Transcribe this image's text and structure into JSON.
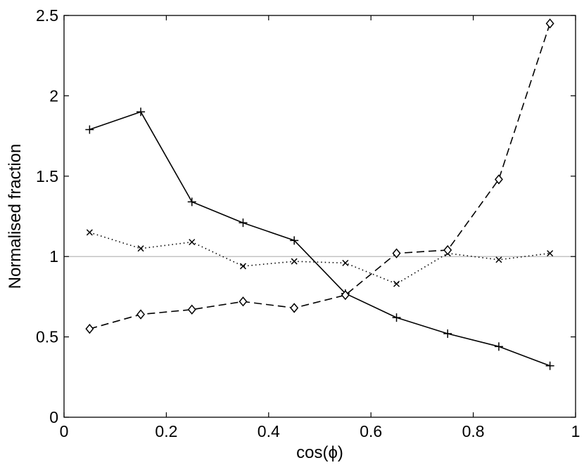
{
  "chart_data": {
    "type": "line",
    "xlabel": "cos(ϕ)",
    "ylabel": "Normalised fraction",
    "xlim": [
      0,
      1
    ],
    "ylim": [
      0,
      2.5
    ],
    "xticks": [
      "0",
      "0.2",
      "0.4",
      "0.6",
      "0.8",
      "1"
    ],
    "yticks": [
      "0",
      "0.5",
      "1",
      "1.5",
      "2",
      "2.5"
    ],
    "grid": false,
    "x": [
      0.05,
      0.15,
      0.25,
      0.35,
      0.45,
      0.55,
      0.65,
      0.75,
      0.85,
      0.95
    ],
    "reference_line": {
      "y": 1,
      "color": "#b0b0b0"
    },
    "series": [
      {
        "style": "solid",
        "marker": "plus",
        "color": "#000000",
        "values": [
          1.79,
          1.9,
          1.34,
          1.21,
          1.1,
          0.77,
          0.62,
          0.52,
          0.44,
          0.32
        ]
      },
      {
        "style": "dotted",
        "marker": "cross",
        "color": "#000000",
        "values": [
          1.15,
          1.05,
          1.09,
          0.94,
          0.97,
          0.96,
          0.83,
          1.02,
          0.98,
          1.02
        ]
      },
      {
        "style": "dashed",
        "marker": "diamond",
        "color": "#000000",
        "values": [
          0.55,
          0.64,
          0.67,
          0.72,
          0.68,
          0.76,
          1.02,
          1.04,
          1.48,
          2.45
        ]
      }
    ]
  }
}
